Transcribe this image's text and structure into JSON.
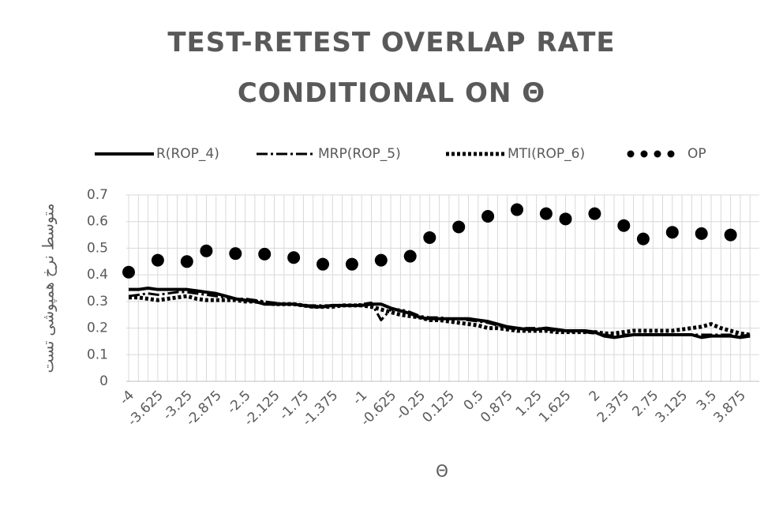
{
  "chart_data": {
    "type": "line",
    "title": "TEST-RETEST OVERLAP RATE CONDITIONAL ON Θ",
    "x_label": "Θ",
    "y_label": "متوسط نرخ همپوشی تست",
    "categories": [
      "-4",
      null,
      null,
      "-3.625",
      null,
      null,
      "-3.25",
      null,
      null,
      "-2.875",
      null,
      null,
      "-2.5",
      null,
      null,
      "-2.125",
      null,
      null,
      "-1.75",
      null,
      null,
      "-1.375",
      null,
      null,
      "-1",
      null,
      null,
      "-0.625",
      null,
      null,
      "-0.25",
      null,
      null,
      "0.125",
      null,
      null,
      "0.5",
      null,
      null,
      "0.875",
      null,
      null,
      "1.25",
      null,
      null,
      "1.625",
      null,
      null,
      "2",
      null,
      null,
      "2.375",
      null,
      null,
      "2.75",
      null,
      null,
      "3.125",
      null,
      null,
      "3.5",
      null,
      null,
      "3.875",
      null
    ],
    "series": [
      {
        "name": "R(ROP_4)",
        "color": "#000000",
        "style": "solid",
        "values": [
          0.345,
          0.345,
          0.35,
          0.345,
          0.345,
          0.345,
          0.345,
          0.34,
          0.335,
          0.33,
          0.32,
          0.31,
          0.305,
          0.3,
          0.29,
          0.29,
          0.29,
          0.29,
          0.285,
          0.28,
          0.28,
          0.285,
          0.285,
          0.285,
          0.285,
          0.29,
          0.29,
          0.275,
          0.265,
          0.255,
          0.24,
          0.235,
          0.235,
          0.235,
          0.235,
          0.235,
          0.23,
          0.225,
          0.215,
          0.205,
          0.2,
          0.195,
          0.195,
          0.2,
          0.195,
          0.19,
          0.19,
          0.19,
          0.185,
          0.17,
          0.165,
          0.17,
          0.175,
          0.175,
          0.175,
          0.175,
          0.175,
          0.175,
          0.175,
          0.165,
          0.17,
          0.17,
          0.17,
          0.165,
          0.17
        ]
      },
      {
        "name": "MRP(ROP_5)",
        "color": "#000000",
        "style": "dashdot",
        "values": [
          0.32,
          0.325,
          0.33,
          0.325,
          0.33,
          0.335,
          0.335,
          0.33,
          0.325,
          0.32,
          0.315,
          0.31,
          0.31,
          0.305,
          0.3,
          0.295,
          0.29,
          0.29,
          0.285,
          0.285,
          0.285,
          0.285,
          0.285,
          0.285,
          0.29,
          0.295,
          0.23,
          0.27,
          0.27,
          0.26,
          0.245,
          0.24,
          0.24,
          0.235,
          0.235,
          0.23,
          0.225,
          0.22,
          0.21,
          0.2,
          0.195,
          0.2,
          0.2,
          0.195,
          0.19,
          0.19,
          0.185,
          0.185,
          0.18,
          0.175,
          0.17,
          0.175,
          0.175,
          0.175,
          0.175,
          0.175,
          0.175,
          0.175,
          0.175,
          0.175,
          0.175,
          0.175,
          0.175,
          0.17,
          0.175
        ]
      },
      {
        "name": "MTI(ROP_6)",
        "color": "#000000",
        "style": "dotted",
        "values": [
          0.315,
          0.315,
          0.31,
          0.305,
          0.31,
          0.315,
          0.32,
          0.31,
          0.305,
          0.305,
          0.305,
          0.305,
          0.3,
          0.3,
          0.295,
          0.29,
          0.29,
          0.29,
          0.285,
          0.28,
          0.28,
          0.28,
          0.285,
          0.285,
          0.285,
          0.28,
          0.27,
          0.26,
          0.25,
          0.245,
          0.24,
          0.23,
          0.23,
          0.225,
          0.22,
          0.215,
          0.21,
          0.2,
          0.2,
          0.195,
          0.19,
          0.19,
          0.19,
          0.19,
          0.185,
          0.185,
          0.185,
          0.185,
          0.185,
          0.18,
          0.18,
          0.185,
          0.19,
          0.19,
          0.19,
          0.19,
          0.19,
          0.195,
          0.2,
          0.205,
          0.215,
          0.2,
          0.19,
          0.18,
          0.175
        ]
      },
      {
        "name": "OP",
        "color": "#000000",
        "style": "markers",
        "values": [
          0.41,
          null,
          null,
          0.455,
          null,
          null,
          0.45,
          null,
          0.49,
          null,
          null,
          0.48,
          null,
          null,
          0.478,
          null,
          null,
          0.465,
          null,
          null,
          0.44,
          null,
          null,
          0.44,
          null,
          null,
          0.455,
          null,
          null,
          0.47,
          null,
          0.54,
          null,
          null,
          0.58,
          null,
          null,
          0.62,
          null,
          null,
          0.645,
          null,
          null,
          0.63,
          null,
          0.61,
          null,
          null,
          0.63,
          null,
          null,
          0.585,
          null,
          0.535,
          null,
          null,
          0.56,
          null,
          null,
          0.555,
          null,
          null,
          0.55,
          null,
          null
        ]
      }
    ],
    "ylim": [
      0,
      0.7
    ],
    "yticks": [
      0,
      0.1,
      0.2,
      0.3,
      0.4,
      0.5,
      0.6,
      0.7
    ],
    "grid": true,
    "legend": "top"
  }
}
